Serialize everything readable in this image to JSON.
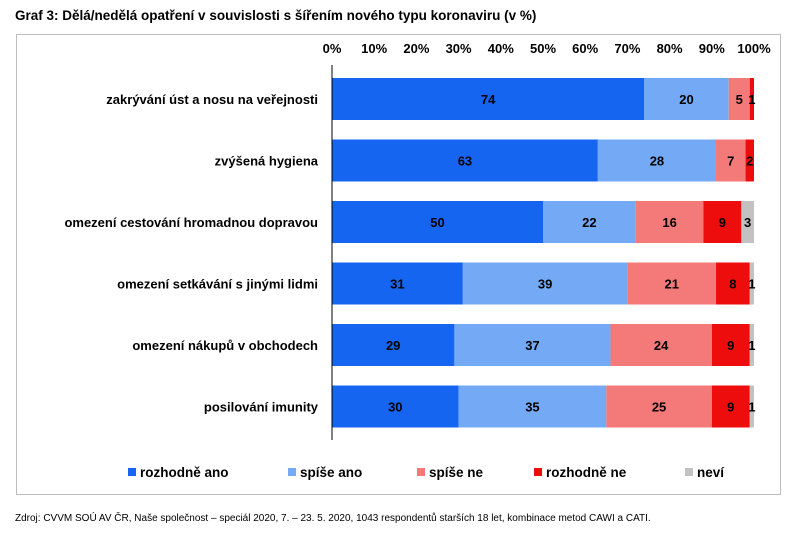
{
  "title": "Graf 3: Dělá/nedělá opatření v souvislosti s šířením nového typu koronaviru (v %)",
  "source": "Zdroj: CVVM SOÚ AV ČR, Naše společnost – speciál 2020, 7. – 23. 5. 2020, 1043 respondentů starších 18 let, kombinace metod CAWI a CATI.",
  "chart_data": {
    "type": "bar",
    "orientation": "horizontal",
    "stacked": true,
    "xlim": [
      0,
      100
    ],
    "x_ticks": [
      "0%",
      "10%",
      "20%",
      "30%",
      "40%",
      "50%",
      "60%",
      "70%",
      "80%",
      "90%",
      "100%"
    ],
    "axis_position": "top",
    "legend_position": "bottom",
    "categories": [
      "zakrývání úst a nosu na veřejnosti",
      "zvýšená hygiena",
      "omezení cestování hromadnou dopravou",
      "omezení setkávání s jinými lidmi",
      "omezení nákupů v obchodech",
      "posilování imunity"
    ],
    "series": [
      {
        "name": "rozhodně ano",
        "color": "#1565f0",
        "values": [
          74,
          63,
          50,
          31,
          29,
          30
        ]
      },
      {
        "name": "spíše ano",
        "color": "#74aaf5",
        "values": [
          20,
          28,
          22,
          39,
          37,
          35
        ]
      },
      {
        "name": "spíše ne",
        "color": "#f47a7a",
        "values": [
          5,
          7,
          16,
          21,
          24,
          25
        ]
      },
      {
        "name": "rozhodně ne",
        "color": "#ee0d0d",
        "values": [
          1,
          2,
          9,
          8,
          9,
          9
        ]
      },
      {
        "name": "neví",
        "color": "#c2c2c2",
        "values": [
          0,
          0,
          3,
          1,
          1,
          1
        ]
      }
    ]
  }
}
